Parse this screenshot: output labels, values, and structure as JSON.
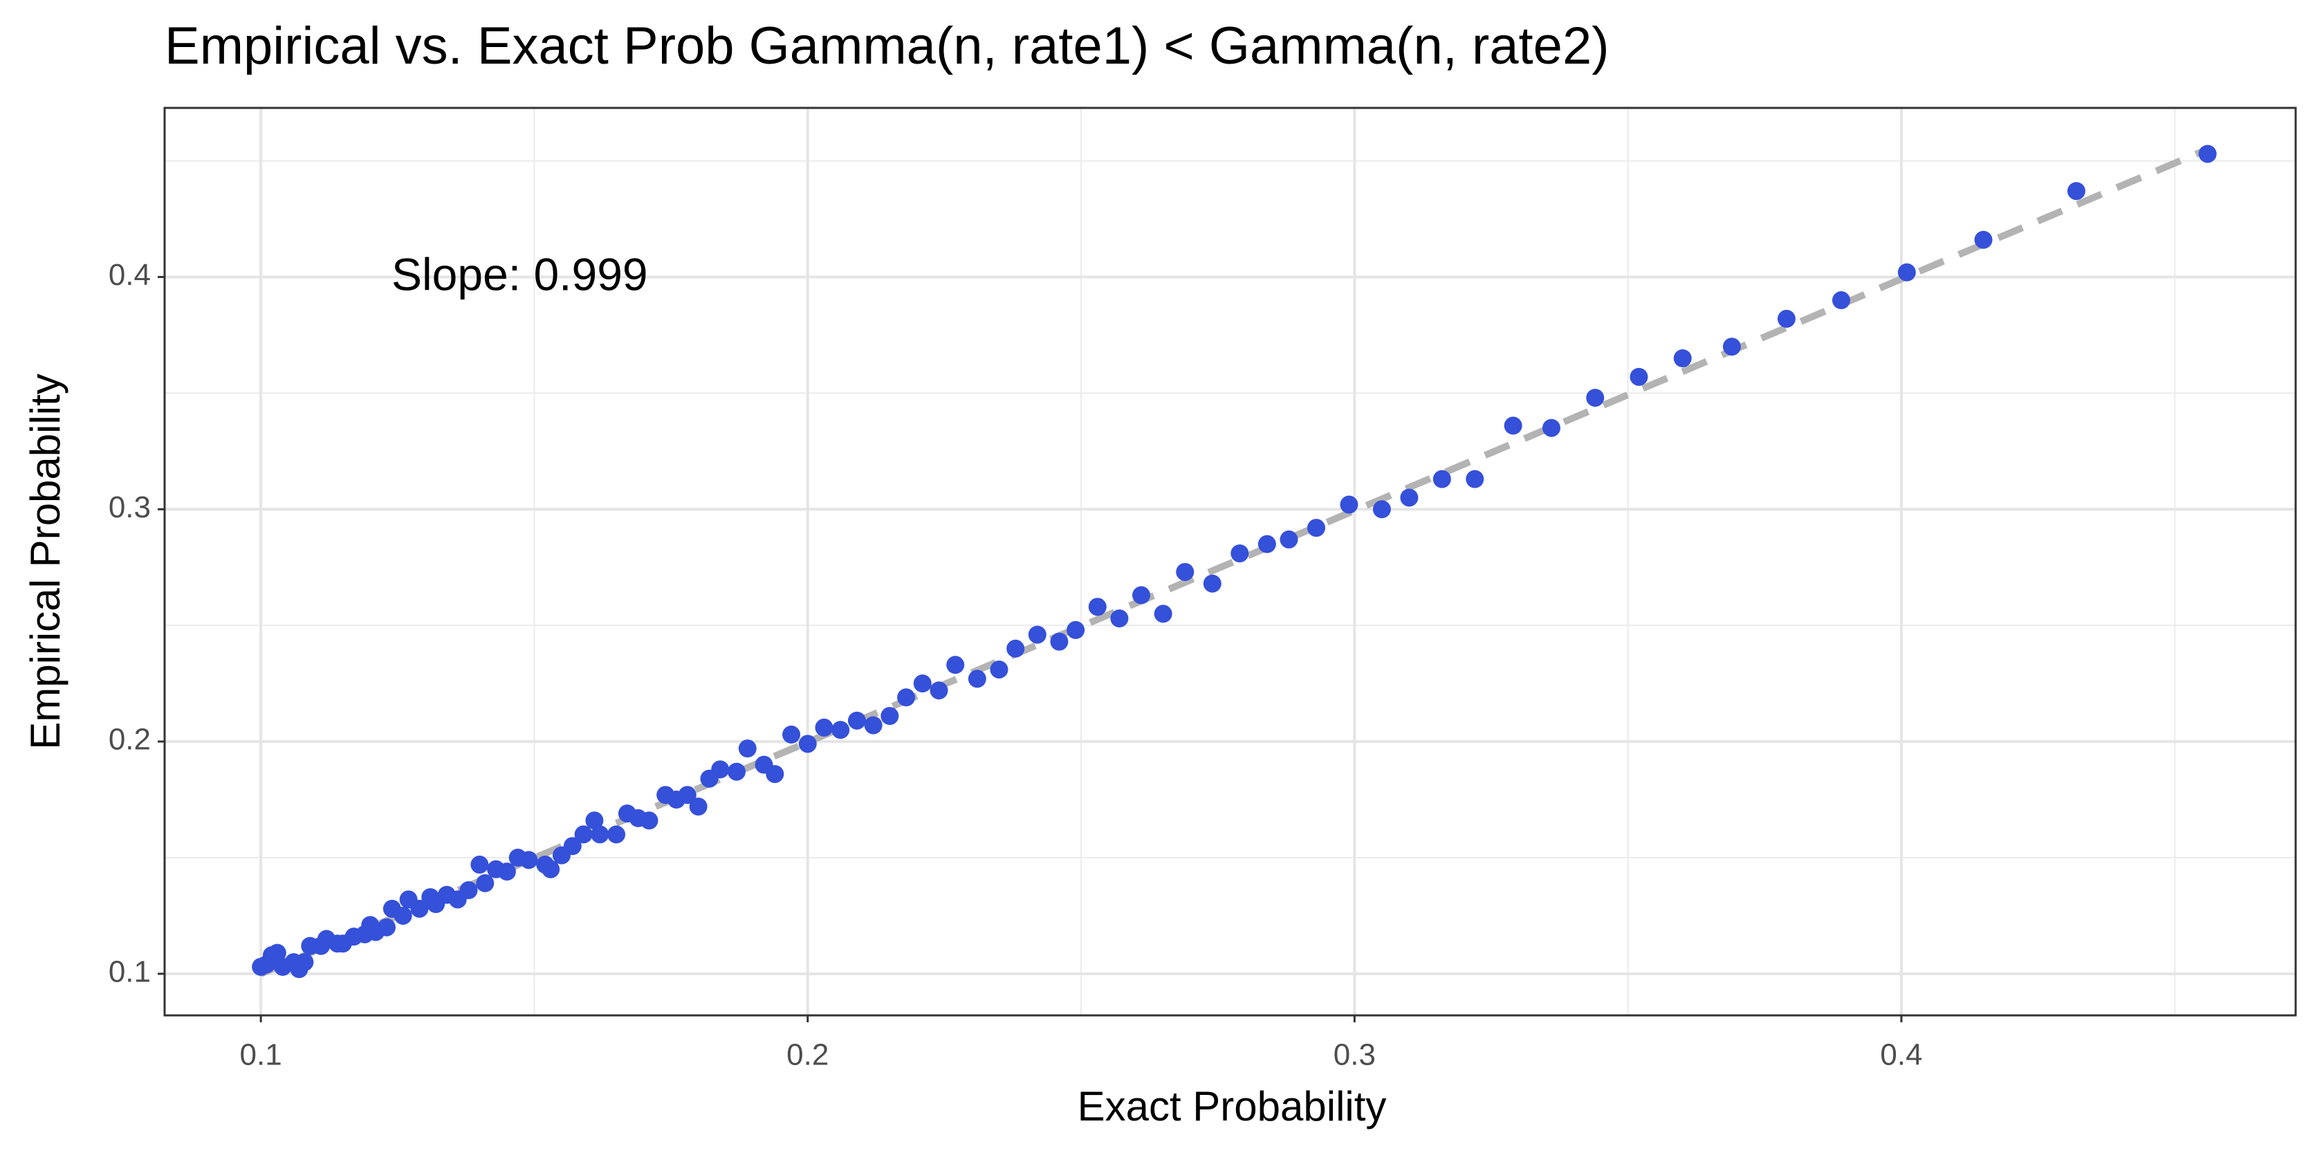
{
  "chart_data": {
    "type": "scatter",
    "title": "Empirical vs. Exact Prob Gamma(n, rate1) < Gamma(n, rate2)",
    "x_label": "Exact Probability",
    "y_label": "Empirical Probability",
    "annotation": "Slope: 0.999",
    "color": "#3550d9",
    "grid": true,
    "xlim": [
      0.0824,
      0.4721
    ],
    "ylim": [
      0.0821,
      0.4728
    ],
    "xticks": [
      0.1,
      0.2,
      0.3,
      0.4
    ],
    "yticks": [
      0.1,
      0.2,
      0.3,
      0.4
    ],
    "xminor": [
      0.15,
      0.25,
      0.35,
      0.45
    ],
    "yminor": [
      0.15,
      0.25,
      0.35,
      0.45
    ],
    "reference_line": {
      "x": [
        0.1,
        0.456
      ],
      "y": [
        0.1,
        0.455
      ],
      "color": "#b3b3b3"
    },
    "x": [
      0.1,
      0.101,
      0.102,
      0.103,
      0.104,
      0.106,
      0.107,
      0.108,
      0.109,
      0.111,
      0.112,
      0.114,
      0.115,
      0.117,
      0.119,
      0.12,
      0.121,
      0.123,
      0.124,
      0.126,
      0.127,
      0.129,
      0.131,
      0.132,
      0.134,
      0.136,
      0.138,
      0.14,
      0.141,
      0.143,
      0.145,
      0.147,
      0.149,
      0.152,
      0.153,
      0.155,
      0.157,
      0.159,
      0.161,
      0.162,
      0.165,
      0.167,
      0.169,
      0.171,
      0.174,
      0.176,
      0.178,
      0.18,
      0.182,
      0.184,
      0.187,
      0.189,
      0.192,
      0.194,
      0.197,
      0.2,
      0.203,
      0.206,
      0.209,
      0.212,
      0.215,
      0.218,
      0.221,
      0.224,
      0.227,
      0.231,
      0.235,
      0.238,
      0.242,
      0.246,
      0.249,
      0.253,
      0.257,
      0.261,
      0.265,
      0.269,
      0.274,
      0.279,
      0.284,
      0.288,
      0.293,
      0.299,
      0.305,
      0.31,
      0.316,
      0.322,
      0.329,
      0.336,
      0.344,
      0.352,
      0.36,
      0.369,
      0.379,
      0.389,
      0.401,
      0.415,
      0.432,
      0.456
    ],
    "values": [
      0.103,
      0.104,
      0.108,
      0.109,
      0.103,
      0.105,
      0.102,
      0.105,
      0.112,
      0.112,
      0.115,
      0.113,
      0.113,
      0.116,
      0.117,
      0.121,
      0.118,
      0.12,
      0.128,
      0.125,
      0.132,
      0.128,
      0.133,
      0.13,
      0.134,
      0.132,
      0.136,
      0.147,
      0.139,
      0.145,
      0.144,
      0.15,
      0.149,
      0.147,
      0.145,
      0.151,
      0.155,
      0.16,
      0.166,
      0.16,
      0.16,
      0.169,
      0.167,
      0.166,
      0.177,
      0.175,
      0.177,
      0.172,
      0.184,
      0.188,
      0.187,
      0.197,
      0.19,
      0.186,
      0.203,
      0.199,
      0.206,
      0.205,
      0.209,
      0.207,
      0.211,
      0.219,
      0.225,
      0.222,
      0.233,
      0.227,
      0.231,
      0.24,
      0.246,
      0.243,
      0.248,
      0.258,
      0.253,
      0.263,
      0.255,
      0.273,
      0.268,
      0.281,
      0.285,
      0.287,
      0.292,
      0.302,
      0.3,
      0.305,
      0.313,
      0.313,
      0.336,
      0.335,
      0.348,
      0.357,
      0.365,
      0.37,
      0.382,
      0.39,
      0.402,
      0.416,
      0.437,
      0.453
    ]
  }
}
